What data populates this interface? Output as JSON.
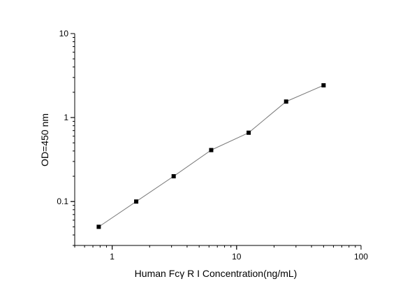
{
  "chart_data": {
    "type": "line",
    "xlabel": "Human Fcγ R I Concentration(ng/mL)",
    "ylabel": "OD=450 nm",
    "x_scale": "log",
    "y_scale": "log",
    "xlim": [
      0.5,
      100
    ],
    "ylim": [
      0.03,
      10
    ],
    "x_ticks": [
      {
        "value": 1,
        "label": "1"
      },
      {
        "value": 10,
        "label": "10"
      },
      {
        "value": 100,
        "label": "100"
      }
    ],
    "y_ticks": [
      {
        "value": 0.1,
        "label": "0.1"
      },
      {
        "value": 1,
        "label": "1"
      },
      {
        "value": 10,
        "label": "10"
      }
    ],
    "grid": false,
    "legend": "none",
    "series": [
      {
        "x": [
          0.78,
          1.56,
          3.12,
          6.25,
          12.5,
          25,
          50
        ],
        "y": [
          0.05,
          0.1,
          0.2,
          0.41,
          0.66,
          1.55,
          2.42
        ],
        "line_color": "#7a7a7a",
        "marker": "square",
        "marker_color": "#000000"
      }
    ]
  }
}
